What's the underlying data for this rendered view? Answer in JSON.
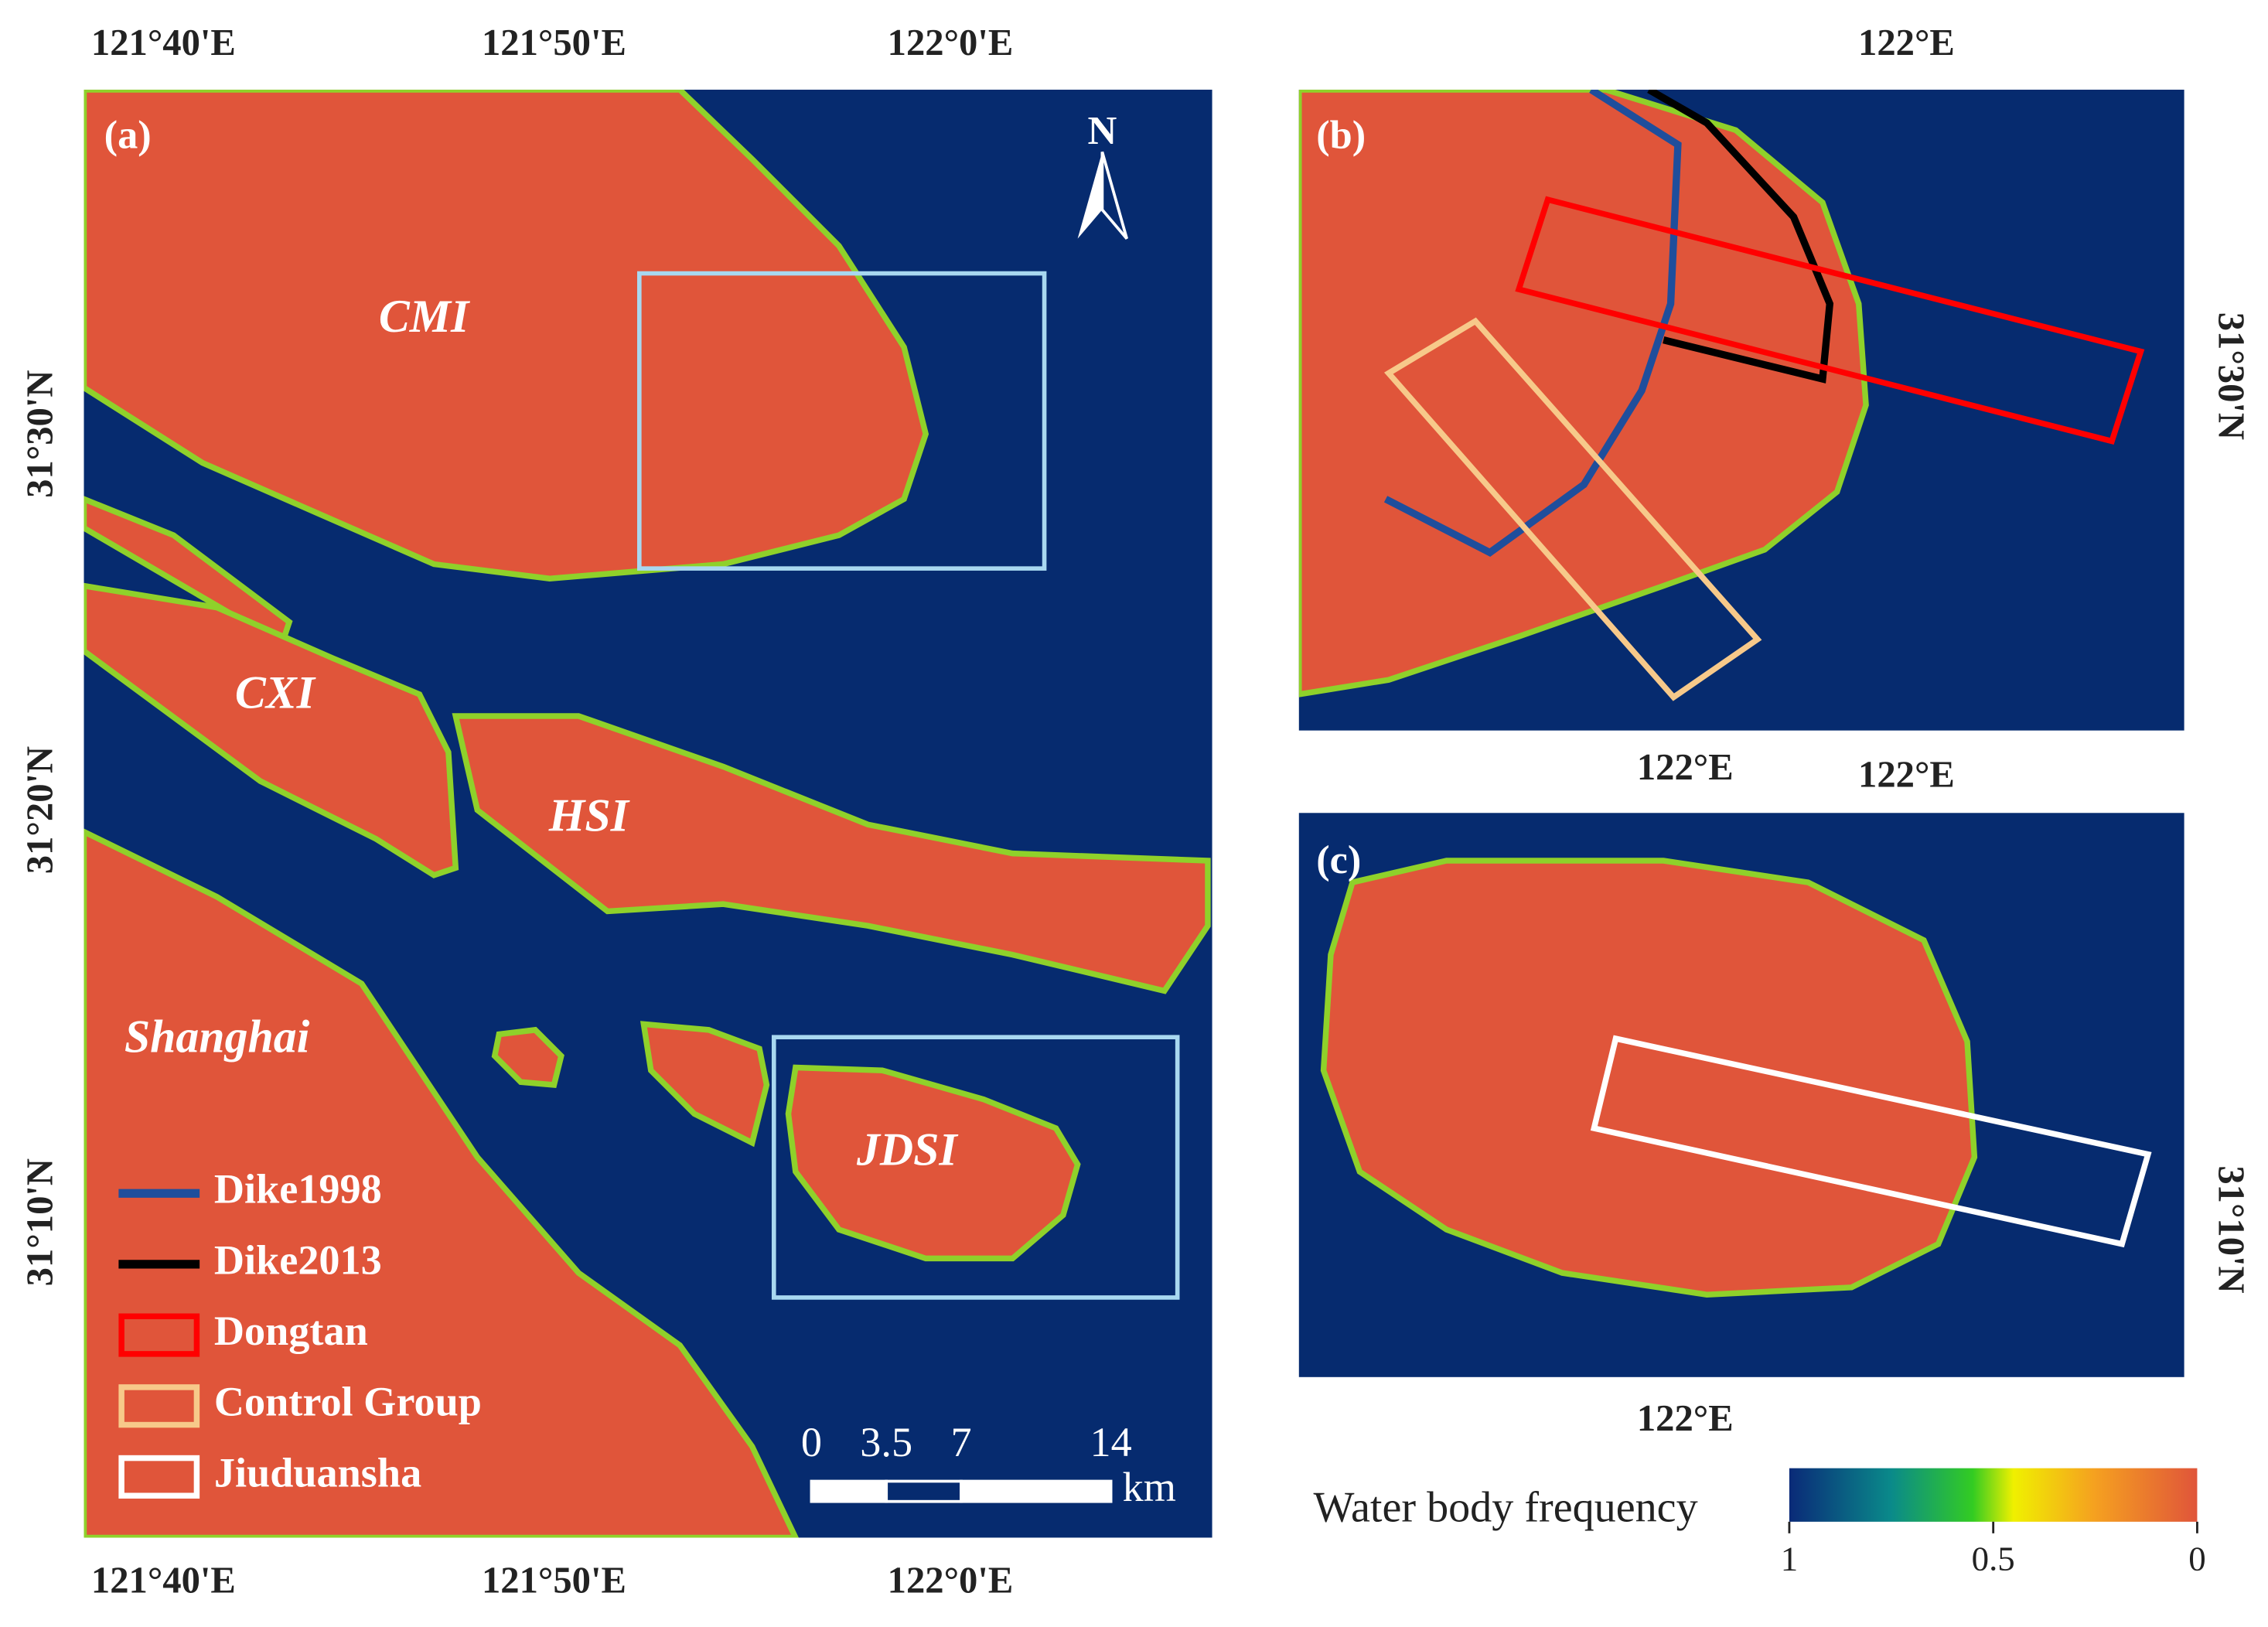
{
  "panel_a": {
    "label": "(a)",
    "north": "N",
    "top_ticks": [
      "121°40'E",
      "121°50'E",
      "122°0'E"
    ],
    "bottom_ticks": [
      "121°40'E",
      "121°50'E",
      "122°0'E"
    ],
    "left_ticks": [
      "31°30'N",
      "31°20'N",
      "31°10'N"
    ],
    "places": [
      "CMI",
      "CXI",
      "HSI",
      "Shanghai",
      "JDSI"
    ]
  },
  "panel_b": {
    "label": "(b)",
    "top_tick": "122°E",
    "bottom_tick": "122°E",
    "right_tick": "31°30'N"
  },
  "panel_c": {
    "label": "(c)",
    "top_tick": "122°E",
    "bottom_tick": "122°E",
    "right_tick": "31°10'N"
  },
  "legend": [
    {
      "name": "Dike1998",
      "color": "#1f4e9c",
      "kind": "line"
    },
    {
      "name": "Dike2013",
      "color": "#000000",
      "kind": "line"
    },
    {
      "name": "Dongtan",
      "color": "#ff0000",
      "kind": "box"
    },
    {
      "name": "Control Group",
      "color": "#f7c98a",
      "kind": "box"
    },
    {
      "name": "Jiuduansha",
      "color": "#ffffff",
      "kind": "box"
    }
  ],
  "scale_bar": {
    "ticks": [
      0,
      3.5,
      7,
      14
    ],
    "unit": "km"
  },
  "colorbar": {
    "title": "Water body frequency",
    "ticks": [
      1,
      0.5,
      0
    ]
  }
}
